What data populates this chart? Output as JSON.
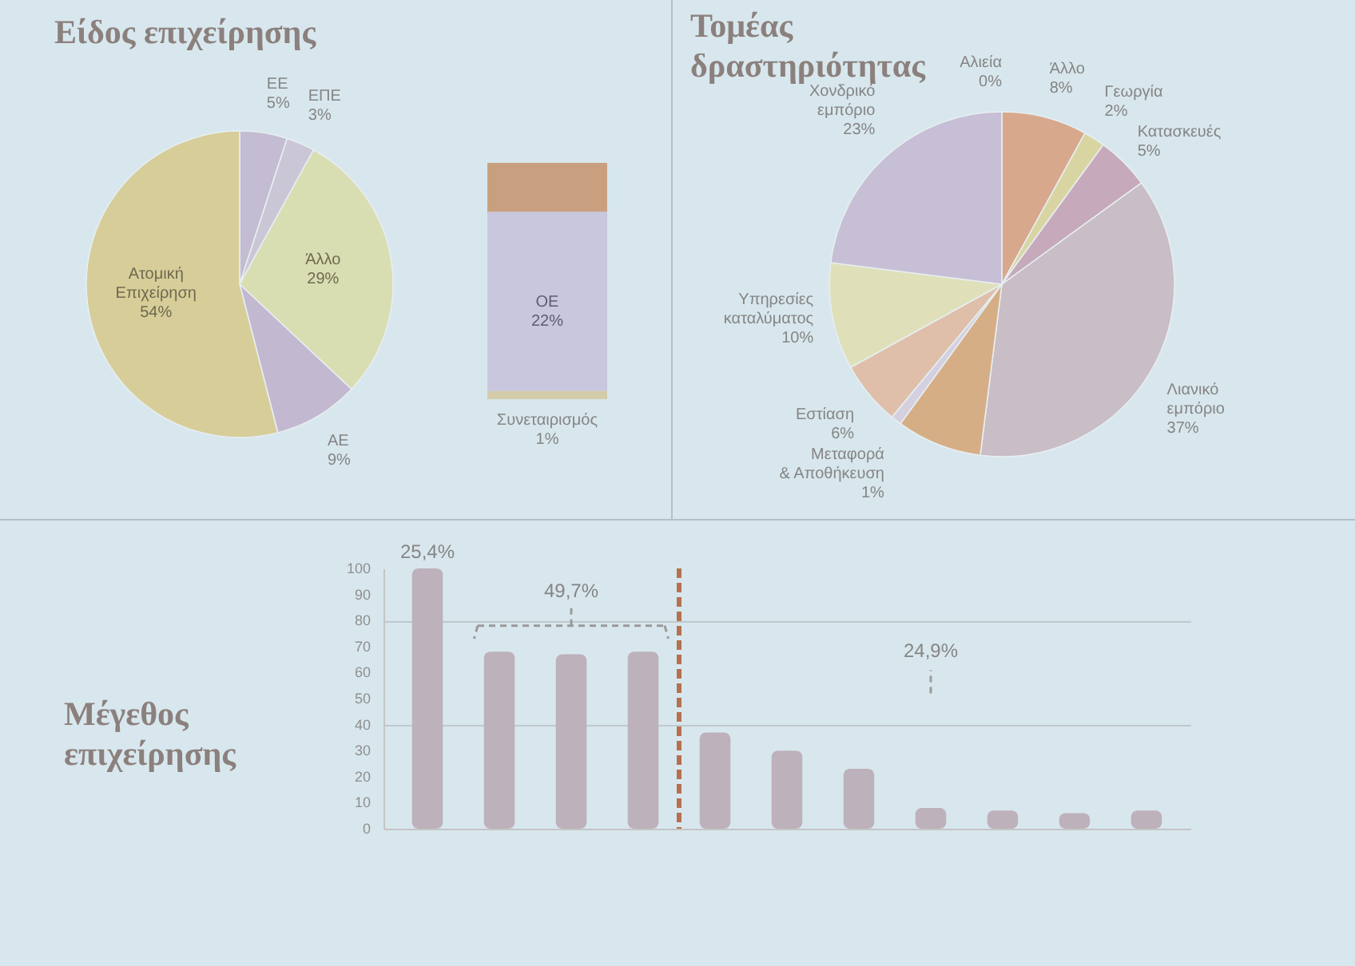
{
  "chart_data": [
    {
      "type": "pie",
      "title": "Είδος επιχείρησης",
      "categories": [
        "ΕΕ",
        "ΕΠΕ",
        "Άλλο",
        "ΑΕ",
        "Ατομική Επιχείρηση"
      ],
      "values": [
        5,
        3,
        29,
        9,
        54
      ],
      "value_labels": [
        "5%",
        "3%",
        "29%",
        "9%",
        "54%"
      ],
      "colors": [
        "#c3bcd2",
        "#cbc6d6",
        "#d9ddb2",
        "#c2b9d0",
        "#d6cd99"
      ]
    },
    {
      "type": "bar",
      "stacked": true,
      "categories": [
        null
      ],
      "series": [
        {
          "name": "Συνεταιρισμός",
          "color": "#d3cba9",
          "values": [
            1
          ],
          "value_labels": [
            "1%"
          ]
        },
        {
          "name": "ΟΕ",
          "color": "#c9c7dd",
          "values": [
            22
          ],
          "value_labels": [
            "22%"
          ]
        },
        {
          "color": "#c9a07f",
          "values": [
            6
          ]
        }
      ],
      "tick_labels": false
    },
    {
      "type": "pie",
      "title": "Τομέας δραστηριότητας",
      "categories": [
        "Αλιεία",
        "Άλλο",
        "Γεωργία",
        "Κατασκευές",
        "Λιανικό εμπόριο",
        null,
        "Μεταφορά & Αποθήκευση",
        "Εστίαση",
        "Υπηρεσίες καταλύματος",
        "Χονδρικό εμπόριο"
      ],
      "values": [
        0,
        8,
        2,
        5,
        37,
        8,
        1,
        6,
        10,
        23
      ],
      "value_labels": [
        "0%",
        "8%",
        "2%",
        "5%",
        "37%",
        null,
        "1%",
        "6%",
        "10%",
        "23%"
      ],
      "colors": [
        "#c4b0c0",
        "#d7a88c",
        "#d9d5a2",
        "#c6a9bb",
        "#c9bdc6",
        "#d6ae86",
        "#d4d0e0",
        "#dfbfa9",
        "#dfe0b9",
        "#c7bfd6"
      ]
    },
    {
      "type": "bar",
      "title": "Μέγεθος επιχείρησης",
      "categories": [
        null,
        null,
        null,
        null,
        null,
        null,
        null,
        null,
        null,
        null,
        null
      ],
      "values": [
        100,
        68,
        67,
        68,
        37,
        30,
        23,
        8,
        7,
        6,
        7
      ],
      "color": "#bdb1bb",
      "ylim": [
        0,
        100
      ],
      "yticks": [
        0,
        10,
        20,
        30,
        40,
        50,
        60,
        70,
        80,
        90,
        100
      ],
      "grid": "y",
      "annotations": [
        "25,4%",
        "49,7%",
        "24,9%"
      ]
    }
  ]
}
